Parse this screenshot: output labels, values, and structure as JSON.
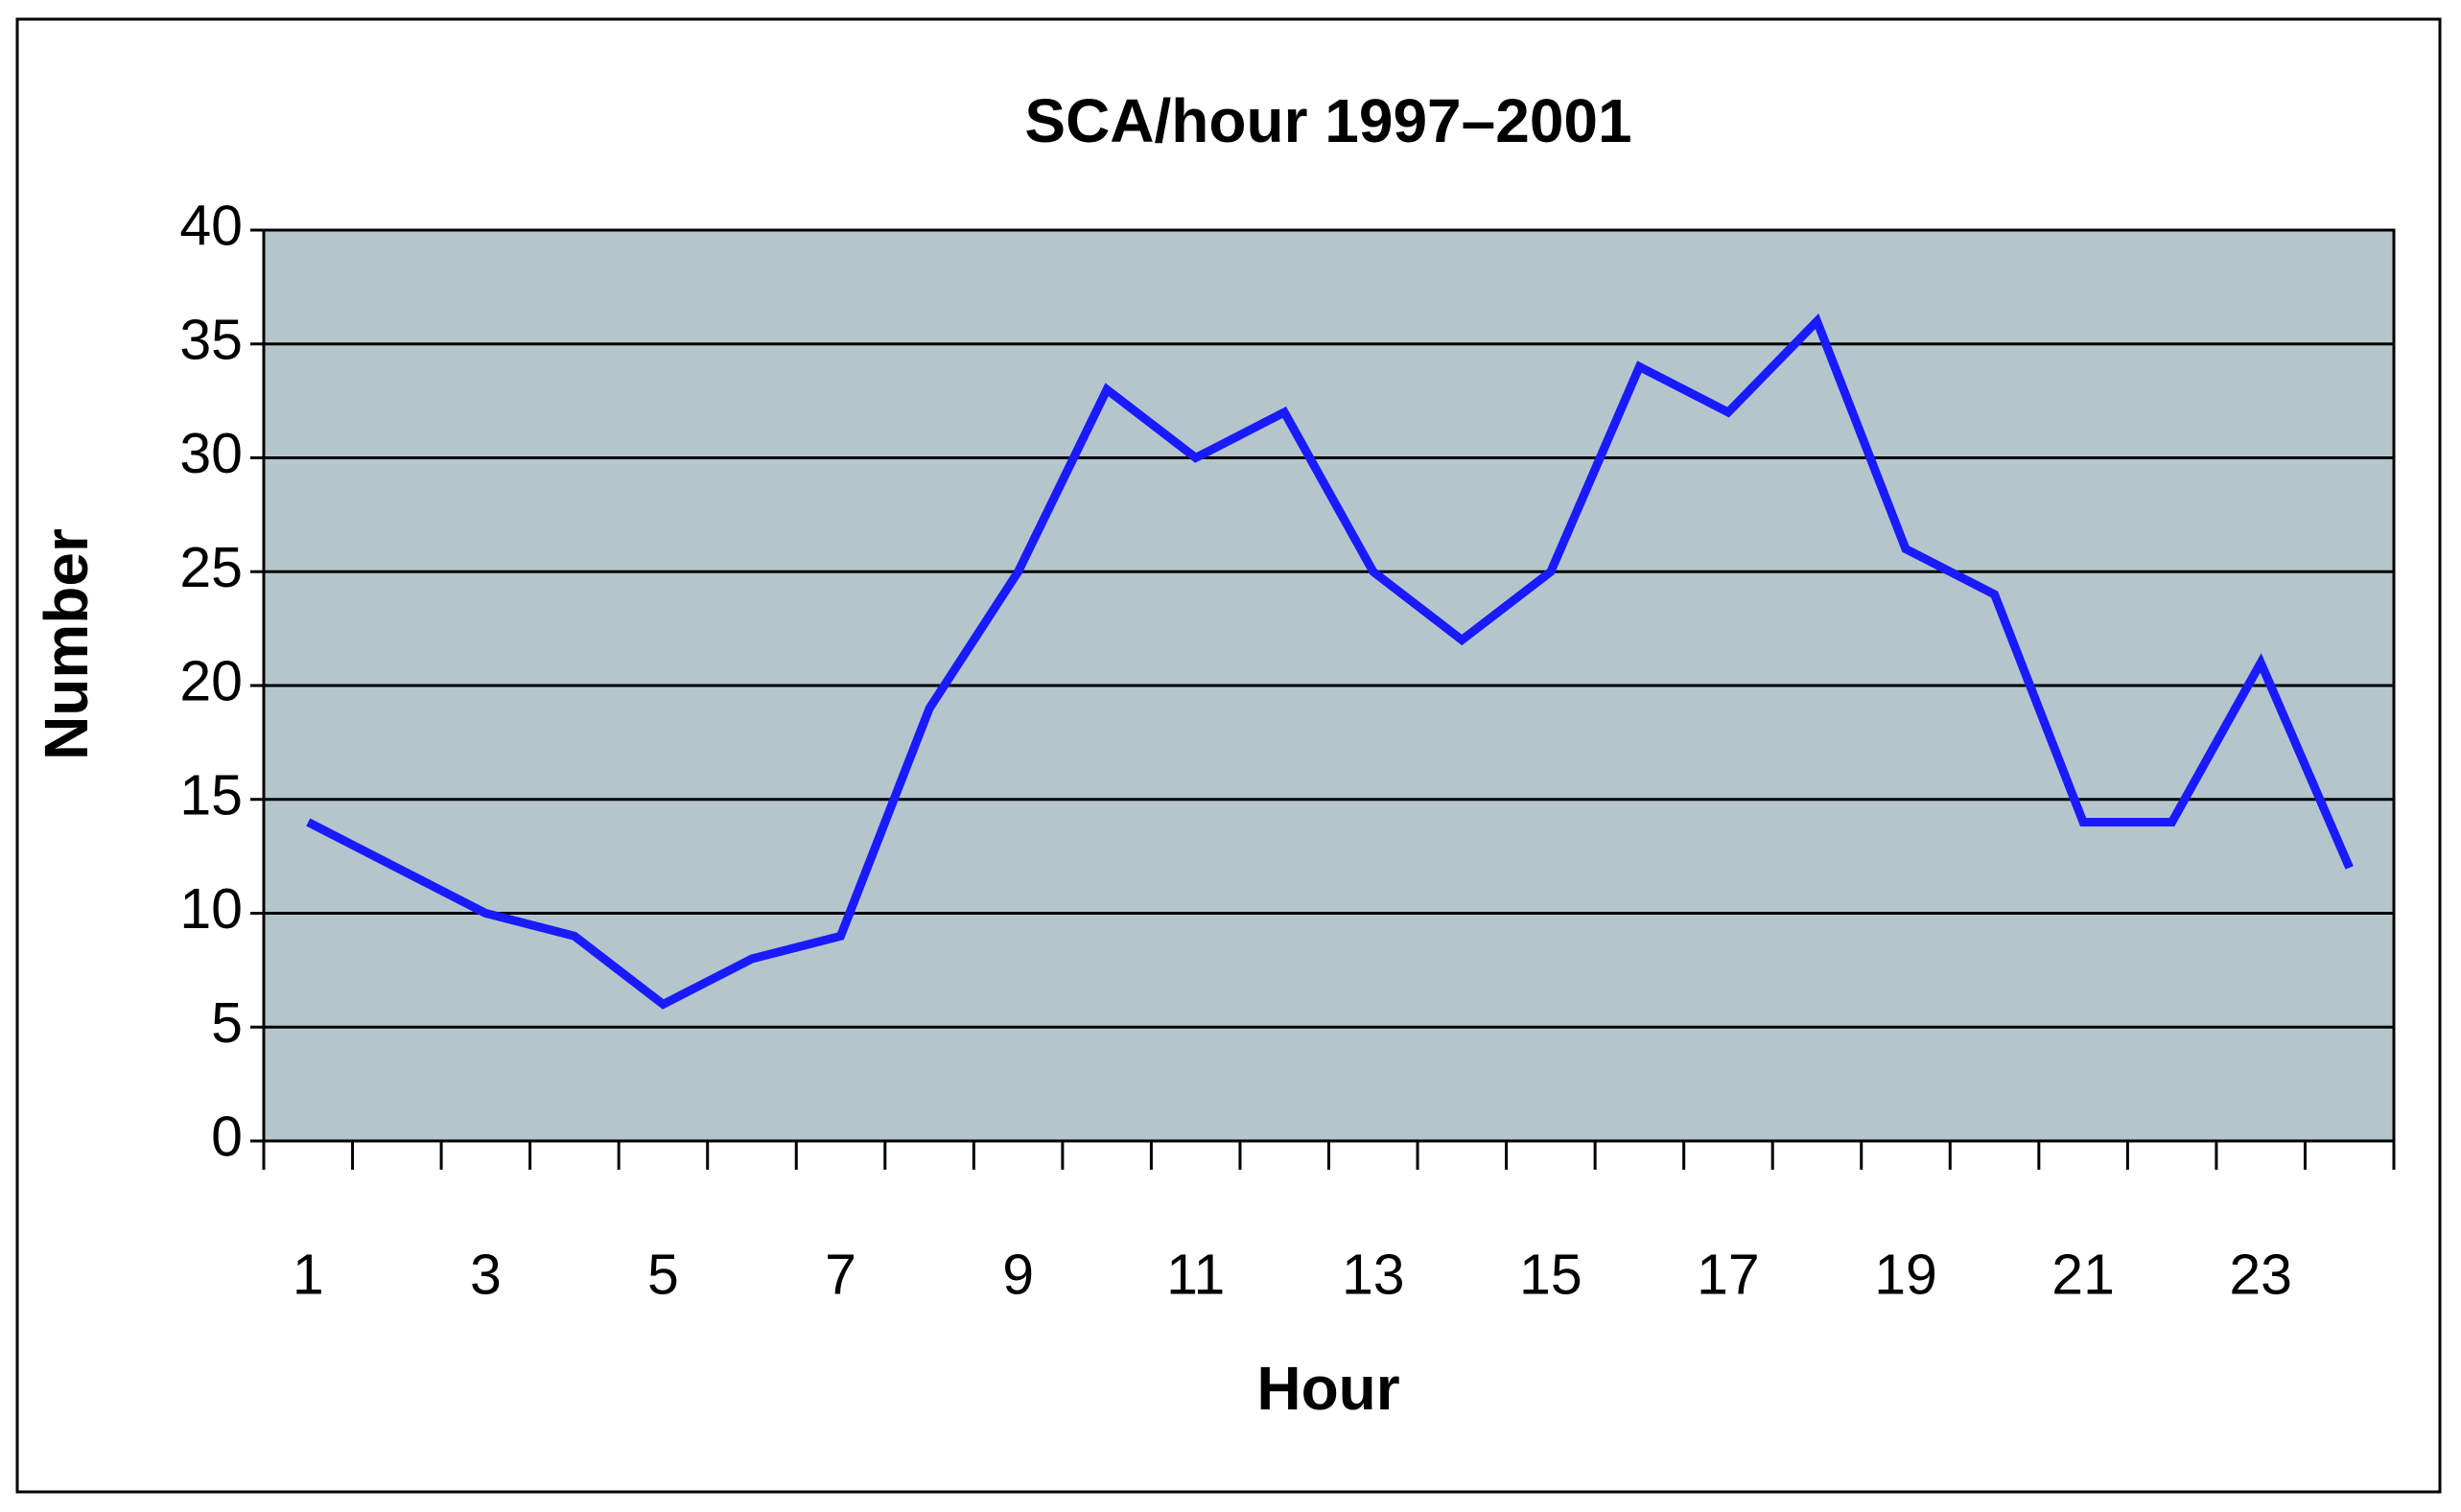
{
  "chart_data": {
    "type": "line",
    "title": "SCA/hour 1997–2001",
    "x_label": "Hour",
    "y_label": "Number",
    "categories": [
      "1",
      null,
      "3",
      null,
      "5",
      null,
      "7",
      null,
      "9",
      null,
      "11",
      null,
      "13",
      null,
      "15",
      null,
      "17",
      null,
      "19",
      null,
      "21",
      null,
      "23",
      null
    ],
    "values": [
      14,
      12,
      10,
      9,
      6,
      8,
      9,
      19,
      25,
      33,
      30,
      32,
      25,
      22,
      25,
      34,
      32,
      36,
      26,
      24,
      14,
      14,
      21,
      12
    ],
    "color": "#1a1aff",
    "plot_background": "#b4c6cc",
    "ylim": [
      0,
      40
    ],
    "yticks": [
      0,
      5,
      10,
      15,
      20,
      25,
      30,
      35,
      40
    ],
    "grid": true
  }
}
